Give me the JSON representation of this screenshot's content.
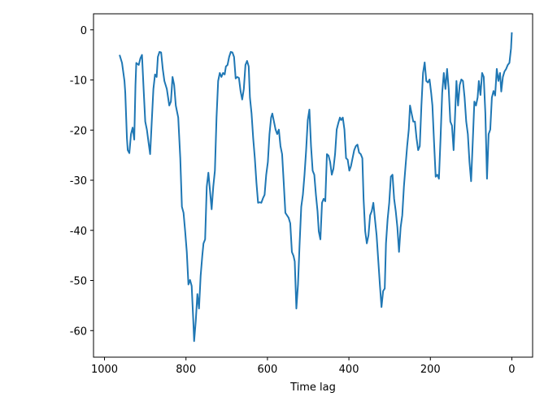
{
  "chart_data": {
    "type": "line",
    "xlabel": "Time lag",
    "color": "#1f77b4",
    "xlim": [
      1027,
      -51
    ],
    "ylim": [
      -65.3,
      3.2
    ],
    "xticks": [
      1000,
      800,
      600,
      400,
      200,
      0
    ],
    "yticks": [
      0,
      -10,
      -20,
      -30,
      -40,
      -50,
      -60
    ],
    "x": [
      963,
      957,
      951,
      949,
      945,
      943,
      939,
      935,
      931,
      927,
      924,
      922,
      916,
      912,
      908,
      904,
      900,
      896,
      892,
      888,
      884,
      880,
      876,
      872,
      869,
      865,
      861,
      857,
      853,
      847,
      841,
      837,
      833,
      829,
      825,
      819,
      814,
      810,
      806,
      802,
      798,
      794,
      790,
      786,
      782,
      780,
      776,
      772,
      768,
      764,
      760,
      757,
      753,
      749,
      745,
      741,
      737,
      733,
      729,
      725,
      721,
      717,
      713,
      709,
      705,
      702,
      698,
      694,
      690,
      686,
      682,
      678,
      674,
      670,
      666,
      662,
      658,
      654,
      650,
      646,
      643,
      639,
      635,
      631,
      627,
      623,
      619,
      615,
      611,
      607,
      603,
      599,
      595,
      591,
      588,
      584,
      580,
      576,
      572,
      568,
      564,
      560,
      556,
      552,
      548,
      544,
      540,
      536,
      533,
      529,
      525,
      521,
      517,
      513,
      509,
      505,
      501,
      497,
      493,
      489,
      485,
      481,
      477,
      474,
      470,
      466,
      462,
      458,
      454,
      450,
      446,
      442,
      438,
      434,
      430,
      426,
      422,
      419,
      415,
      411,
      407,
      403,
      399,
      395,
      391,
      387,
      383,
      379,
      375,
      371,
      367,
      364,
      360,
      356,
      352,
      348,
      344,
      340,
      336,
      332,
      328,
      324,
      320,
      316,
      312,
      309,
      305,
      301,
      297,
      293,
      289,
      285,
      281,
      277,
      273,
      269,
      265,
      261,
      257,
      253,
      250,
      246,
      242,
      238,
      234,
      230,
      226,
      222,
      218,
      214,
      210,
      206,
      202,
      198,
      195,
      191,
      187,
      183,
      179,
      175,
      171,
      167,
      163,
      159,
      155,
      151,
      147,
      143,
      140,
      136,
      132,
      128,
      124,
      120,
      116,
      112,
      108,
      104,
      100,
      96,
      92,
      88,
      84,
      81,
      77,
      73,
      69,
      65,
      61,
      57,
      53,
      49,
      45,
      41,
      37,
      33,
      29,
      26,
      22,
      18,
      14,
      10,
      6,
      2,
      0
    ],
    "values": [
      -5.0,
      -6.6,
      -10.2,
      -12.6,
      -21.6,
      -24.0,
      -24.6,
      -20.8,
      -19.5,
      -21.9,
      -11.0,
      -6.6,
      -7.0,
      -5.7,
      -5.0,
      -11.8,
      -18.3,
      -19.9,
      -22.4,
      -24.8,
      -18.3,
      -11.8,
      -8.9,
      -9.4,
      -5.4,
      -4.4,
      -4.5,
      -7.8,
      -10.2,
      -11.8,
      -15.1,
      -14.3,
      -9.4,
      -11.0,
      -15.1,
      -17.5,
      -25.6,
      -35.3,
      -36.5,
      -40.2,
      -44.3,
      -50.8,
      -49.9,
      -51.1,
      -58.1,
      -62.1,
      -58.1,
      -52.7,
      -55.6,
      -49.1,
      -45.1,
      -42.6,
      -41.8,
      -31.3,
      -28.5,
      -32.1,
      -35.8,
      -31.3,
      -28.1,
      -17.5,
      -10.2,
      -8.6,
      -9.4,
      -8.6,
      -8.9,
      -7.3,
      -7.0,
      -5.4,
      -4.4,
      -4.5,
      -5.4,
      -9.7,
      -9.4,
      -9.6,
      -12.2,
      -13.9,
      -11.8,
      -7.0,
      -6.2,
      -7.3,
      -13.5,
      -16.7,
      -21.6,
      -25.6,
      -30.5,
      -34.5,
      -34.4,
      -34.5,
      -33.6,
      -32.9,
      -28.9,
      -26.4,
      -20.8,
      -17.5,
      -16.7,
      -18.3,
      -19.9,
      -20.8,
      -19.9,
      -23.2,
      -24.8,
      -30.5,
      -36.5,
      -37.0,
      -37.5,
      -38.6,
      -44.3,
      -45.1,
      -46.2,
      -55.6,
      -50.8,
      -42.6,
      -35.3,
      -32.9,
      -28.9,
      -24.0,
      -18.0,
      -15.9,
      -23.2,
      -28.1,
      -28.9,
      -32.9,
      -36.2,
      -40.2,
      -41.8,
      -34.5,
      -33.7,
      -34.2,
      -24.8,
      -25.1,
      -26.4,
      -28.9,
      -27.7,
      -24.8,
      -19.9,
      -18.6,
      -17.5,
      -18.0,
      -17.5,
      -19.9,
      -25.6,
      -25.9,
      -28.1,
      -27.2,
      -25.6,
      -24.0,
      -23.2,
      -22.9,
      -24.5,
      -24.8,
      -25.6,
      -33.7,
      -40.2,
      -42.6,
      -41.0,
      -37.0,
      -36.2,
      -34.5,
      -37.8,
      -41.0,
      -45.9,
      -50.8,
      -55.3,
      -52.1,
      -51.6,
      -42.6,
      -37.8,
      -34.5,
      -29.3,
      -28.9,
      -33.7,
      -36.2,
      -39.4,
      -44.3,
      -39.4,
      -37.0,
      -31.3,
      -27.2,
      -23.2,
      -19.9,
      -15.1,
      -16.7,
      -18.3,
      -18.3,
      -21.6,
      -24.0,
      -23.2,
      -15.1,
      -8.6,
      -6.5,
      -10.2,
      -10.5,
      -9.9,
      -12.6,
      -15.1,
      -22.4,
      -29.3,
      -28.9,
      -29.7,
      -21.6,
      -12.6,
      -8.6,
      -11.8,
      -7.8,
      -11.8,
      -18.3,
      -19.1,
      -24.0,
      -18.3,
      -10.2,
      -15.1,
      -11.0,
      -9.9,
      -10.2,
      -13.5,
      -18.3,
      -20.8,
      -26.4,
      -30.2,
      -22.4,
      -14.3,
      -15.1,
      -13.5,
      -10.2,
      -13.0,
      -8.6,
      -9.4,
      -16.7,
      -29.7,
      -20.8,
      -19.9,
      -13.5,
      -12.2,
      -13.1,
      -7.8,
      -10.2,
      -8.6,
      -12.3,
      -9.4,
      -8.3,
      -7.8,
      -7.0,
      -6.6,
      -3.7,
      -0.5
    ]
  }
}
